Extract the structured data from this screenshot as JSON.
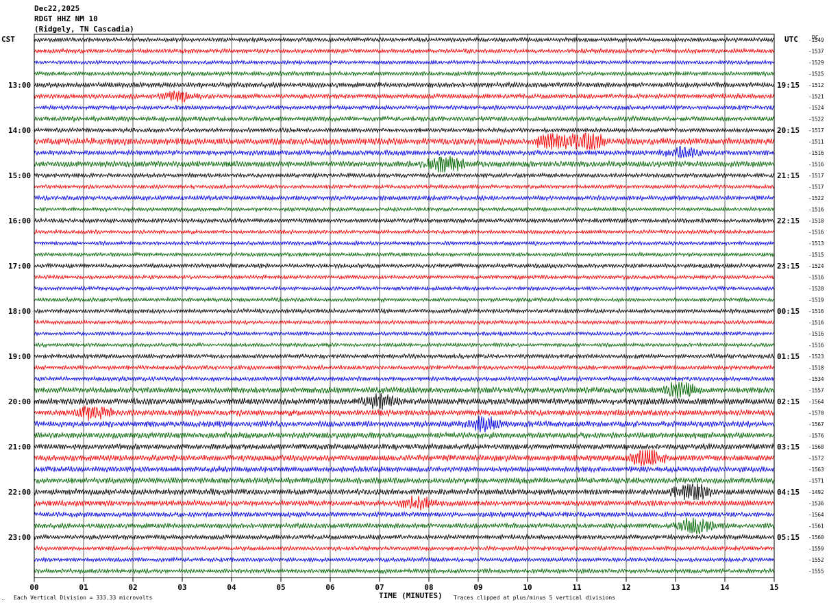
{
  "header": {
    "date": "Dec22,2025",
    "station": "RDGT HHZ NM 10",
    "location": "(Ridgely, TN Cascadia)"
  },
  "left_axis_label": "CST",
  "right_axis_label": "UTC",
  "dc_label": "DC",
  "footer": {
    "vertical_division": "Each Vertical Division =  333.33 microvolts",
    "clip_note": "Traces clipped at plus/minus 5 vertical divisions",
    "corner_mark": "‥"
  },
  "colors": {
    "series": [
      "#000000",
      "#ee0000",
      "#0000dd",
      "#006600"
    ],
    "grid": "#000000"
  },
  "chart_data": {
    "type": "line",
    "title": "",
    "xlabel": "TIME (MINUTES)",
    "ylabel": "",
    "xlim": [
      0,
      15
    ],
    "x_ticks": [
      "00",
      "01",
      "02",
      "03",
      "04",
      "05",
      "06",
      "07",
      "08",
      "09",
      "10",
      "11",
      "12",
      "13",
      "14",
      "15"
    ],
    "trace_count": 48,
    "traces_per_hour": 4,
    "left_hour_labels": [
      {
        "trace": 4,
        "label": "13:00"
      },
      {
        "trace": 8,
        "label": "14:00"
      },
      {
        "trace": 12,
        "label": "15:00"
      },
      {
        "trace": 16,
        "label": "16:00"
      },
      {
        "trace": 20,
        "label": "17:00"
      },
      {
        "trace": 24,
        "label": "18:00"
      },
      {
        "trace": 28,
        "label": "19:00"
      },
      {
        "trace": 32,
        "label": "20:00"
      },
      {
        "trace": 36,
        "label": "21:00"
      },
      {
        "trace": 40,
        "label": "22:00"
      },
      {
        "trace": 44,
        "label": "23:00"
      }
    ],
    "right_hour_labels": [
      {
        "trace": 4,
        "label": "19:15"
      },
      {
        "trace": 8,
        "label": "20:15"
      },
      {
        "trace": 12,
        "label": "21:15"
      },
      {
        "trace": 16,
        "label": "22:15"
      },
      {
        "trace": 20,
        "label": "23:15"
      },
      {
        "trace": 24,
        "label": "00:15"
      },
      {
        "trace": 28,
        "label": "01:15"
      },
      {
        "trace": 32,
        "label": "02:15"
      },
      {
        "trace": 36,
        "label": "03:15"
      },
      {
        "trace": 40,
        "label": "04:15"
      },
      {
        "trace": 44,
        "label": "05:15"
      }
    ],
    "dc_offsets": [
      "-1549",
      "-1537",
      "-1529",
      "-1525",
      "-1512",
      "-1521",
      "-1524",
      "-1522",
      "-1517",
      "-1511",
      "-1516",
      "-1516",
      "-1517",
      "-1517",
      "-1522",
      "-1516",
      "-1518",
      "-1516",
      "-1513",
      "-1515",
      "-1524",
      "-1516",
      "-1520",
      "-1519",
      "-1516",
      "-1516",
      "-1516",
      "-1516",
      "-1523",
      "-1518",
      "-1534",
      "-1557",
      "-1564",
      "-1570",
      "-1567",
      "-1576",
      "-1568",
      "-1572",
      "-1563",
      "-1571",
      "-1492",
      "-1536",
      "-1564",
      "-1561",
      "-1560",
      "-1559",
      "-1552",
      "-1555"
    ],
    "amplitudes": [
      1.0,
      1.0,
      0.9,
      1.0,
      1.2,
      1.1,
      1.0,
      1.1,
      1.0,
      1.6,
      1.2,
      1.4,
      1.0,
      0.9,
      1.1,
      0.9,
      1.0,
      0.9,
      0.9,
      0.9,
      1.0,
      0.9,
      0.9,
      0.9,
      1.0,
      0.9,
      0.9,
      0.9,
      1.0,
      1.0,
      1.0,
      1.4,
      1.5,
      1.4,
      1.4,
      1.4,
      1.3,
      1.4,
      1.3,
      1.4,
      1.4,
      1.3,
      1.2,
      1.2,
      1.1,
      1.0,
      1.0,
      1.0
    ],
    "events": [
      {
        "trace": 9,
        "minute": 11.2,
        "amplitude": 3.0
      },
      {
        "trace": 9,
        "minute": 10.5,
        "amplitude": 2.2
      },
      {
        "trace": 11,
        "minute": 8.3,
        "amplitude": 3.2
      },
      {
        "trace": 5,
        "minute": 2.9,
        "amplitude": 2.2
      },
      {
        "trace": 10,
        "minute": 13.1,
        "amplitude": 2.0
      },
      {
        "trace": 31,
        "minute": 13.1,
        "amplitude": 2.8
      },
      {
        "trace": 32,
        "minute": 7.0,
        "amplitude": 2.0
      },
      {
        "trace": 33,
        "minute": 1.2,
        "amplitude": 2.2
      },
      {
        "trace": 34,
        "minute": 9.1,
        "amplitude": 2.5
      },
      {
        "trace": 37,
        "minute": 12.4,
        "amplitude": 3.0
      },
      {
        "trace": 40,
        "minute": 13.35,
        "amplitude": 3.5
      },
      {
        "trace": 41,
        "minute": 7.8,
        "amplitude": 2.2
      },
      {
        "trace": 43,
        "minute": 13.38,
        "amplitude": 3.5
      }
    ]
  }
}
